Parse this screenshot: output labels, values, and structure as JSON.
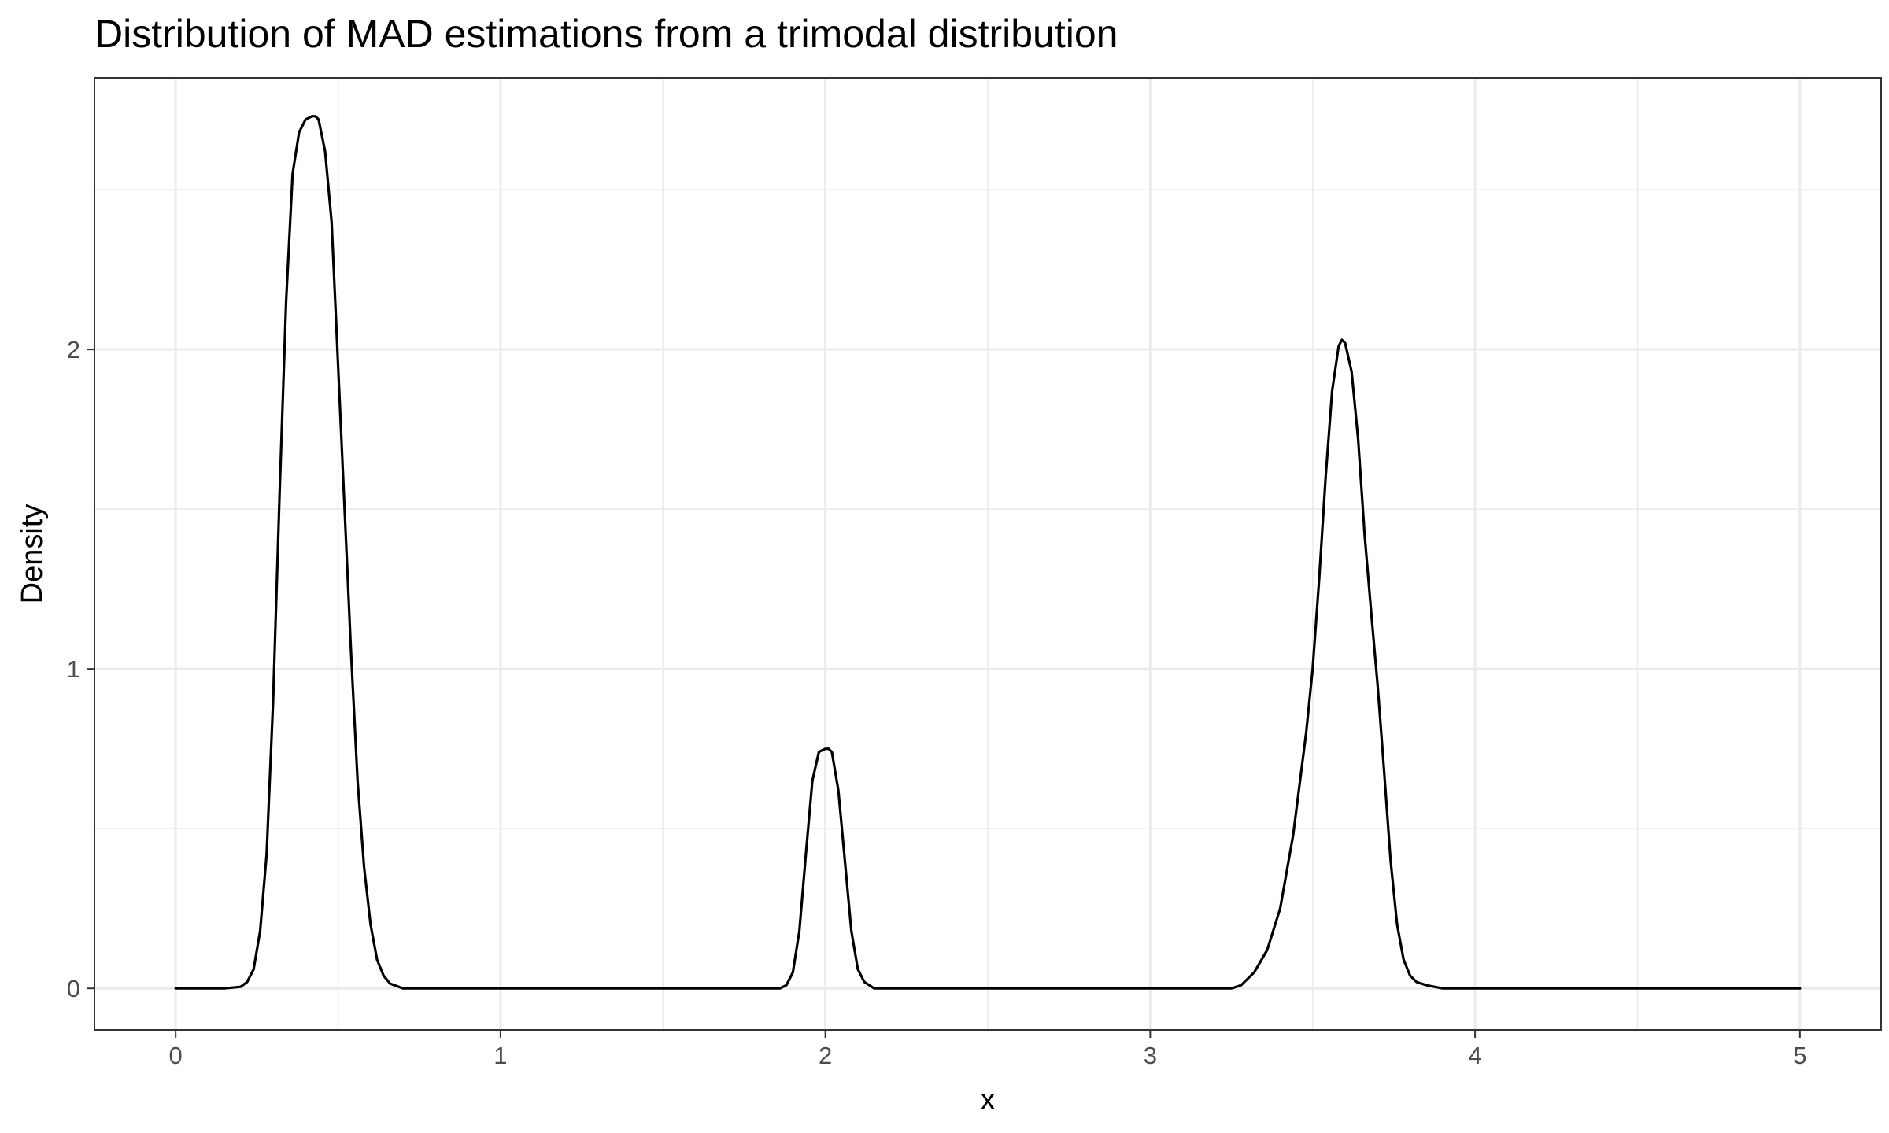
{
  "chart_data": {
    "type": "line",
    "title": "Distribution of MAD estimations from a trimodal distribution",
    "xlabel": "x",
    "ylabel": "Density",
    "xlim": [
      -0.25,
      5.25
    ],
    "ylim": [
      -0.13,
      2.85
    ],
    "x_ticks": [
      0,
      1,
      2,
      3,
      4,
      5
    ],
    "y_ticks": [
      0,
      1,
      2
    ],
    "x_minor_ticks": [
      0.5,
      1.5,
      2.5,
      3.5,
      4.5
    ],
    "y_minor_ticks": [
      0.5,
      1.5,
      2.5
    ],
    "grid": true,
    "line_color": "#000000",
    "peaks": [
      {
        "x": 0.43,
        "y": 2.73
      },
      {
        "x": 2.01,
        "y": 0.75
      },
      {
        "x": 3.59,
        "y": 2.03
      }
    ],
    "x": [
      0.0,
      0.15,
      0.2,
      0.22,
      0.24,
      0.26,
      0.28,
      0.3,
      0.32,
      0.34,
      0.36,
      0.38,
      0.4,
      0.42,
      0.43,
      0.44,
      0.46,
      0.48,
      0.5,
      0.52,
      0.54,
      0.56,
      0.58,
      0.6,
      0.62,
      0.64,
      0.66,
      0.7,
      1.0,
      1.5,
      1.86,
      1.88,
      1.9,
      1.92,
      1.94,
      1.96,
      1.98,
      2.0,
      2.01,
      2.02,
      2.04,
      2.06,
      2.08,
      2.1,
      2.12,
      2.15,
      2.5,
      3.0,
      3.25,
      3.28,
      3.32,
      3.36,
      3.4,
      3.44,
      3.48,
      3.5,
      3.52,
      3.54,
      3.56,
      3.58,
      3.59,
      3.6,
      3.62,
      3.64,
      3.66,
      3.68,
      3.7,
      3.72,
      3.74,
      3.76,
      3.78,
      3.8,
      3.82,
      3.85,
      3.9,
      4.0,
      4.5,
      5.0
    ],
    "y": [
      0.0,
      0.0,
      0.005,
      0.02,
      0.06,
      0.18,
      0.42,
      0.9,
      1.55,
      2.15,
      2.55,
      2.68,
      2.72,
      2.73,
      2.73,
      2.72,
      2.62,
      2.4,
      1.95,
      1.5,
      1.05,
      0.65,
      0.38,
      0.2,
      0.09,
      0.04,
      0.015,
      0.0,
      0.0,
      0.0,
      0.0,
      0.01,
      0.05,
      0.18,
      0.42,
      0.65,
      0.74,
      0.75,
      0.75,
      0.74,
      0.62,
      0.4,
      0.18,
      0.06,
      0.02,
      0.0,
      0.0,
      0.0,
      0.0,
      0.01,
      0.05,
      0.12,
      0.25,
      0.48,
      0.8,
      1.0,
      1.28,
      1.6,
      1.87,
      2.01,
      2.03,
      2.02,
      1.93,
      1.72,
      1.42,
      1.18,
      0.95,
      0.68,
      0.4,
      0.2,
      0.09,
      0.04,
      0.02,
      0.01,
      0.0,
      0.0,
      0.0,
      0.0
    ]
  }
}
